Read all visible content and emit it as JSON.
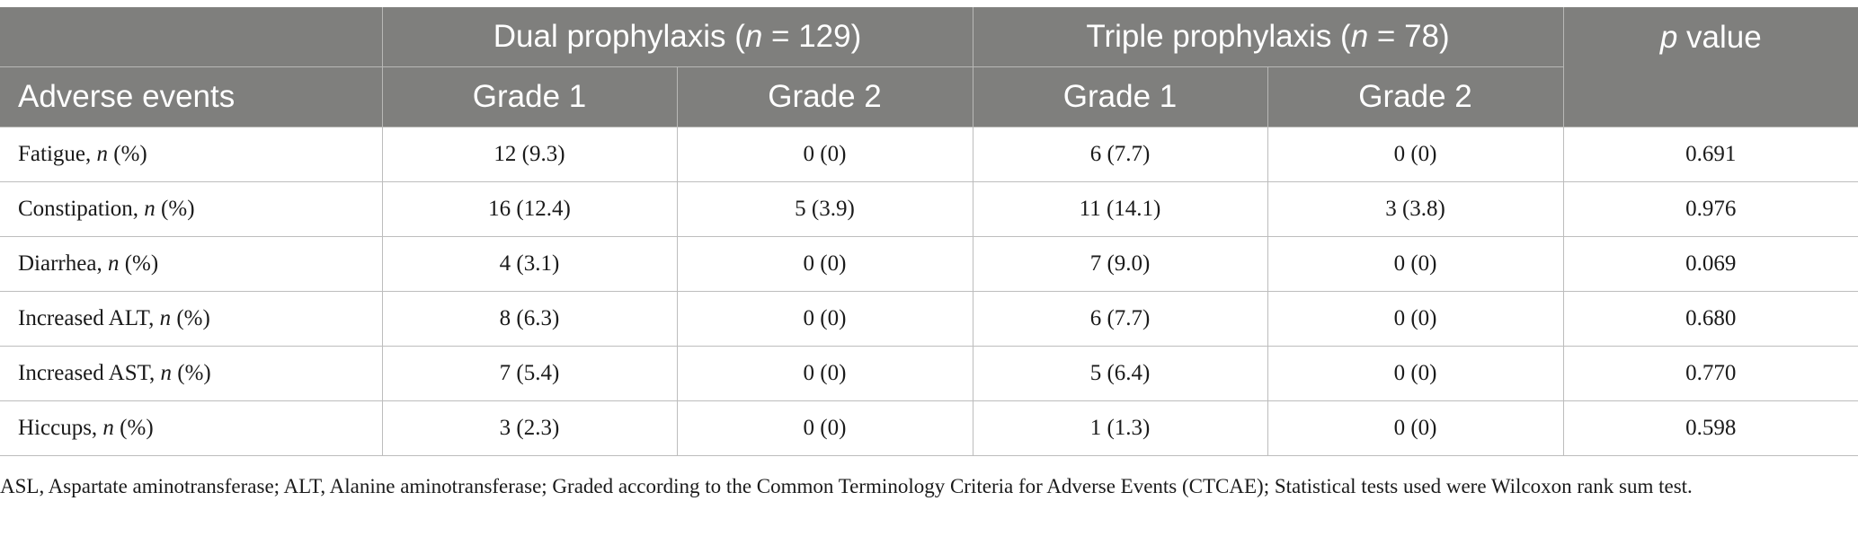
{
  "header": {
    "group1": {
      "pre": "Dual prophylaxis (",
      "n": "n",
      "post": " = 129)"
    },
    "group2": {
      "pre": "Triple prophylaxis (",
      "n": "n",
      "post": " = 78)"
    },
    "pvalue": {
      "p": "p",
      "post": " value"
    },
    "row_label": "Adverse events",
    "grade1": "Grade 1",
    "grade2": "Grade 2"
  },
  "rows": [
    {
      "name": "Fatigue, ",
      "n": "n",
      "unit": " (%)",
      "dual_g1": "12 (9.3)",
      "dual_g2": "0 (0)",
      "triple_g1": "6 (7.7)",
      "triple_g2": "0 (0)",
      "p": "0.691"
    },
    {
      "name": "Constipation, ",
      "n": "n",
      "unit": " (%)",
      "dual_g1": "16 (12.4)",
      "dual_g2": "5 (3.9)",
      "triple_g1": "11 (14.1)",
      "triple_g2": "3 (3.8)",
      "p": "0.976"
    },
    {
      "name": "Diarrhea, ",
      "n": "n",
      "unit": " (%)",
      "dual_g1": "4 (3.1)",
      "dual_g2": "0 (0)",
      "triple_g1": "7 (9.0)",
      "triple_g2": "0 (0)",
      "p": "0.069"
    },
    {
      "name": "Increased ALT, ",
      "n": "n",
      "unit": " (%)",
      "dual_g1": "8 (6.3)",
      "dual_g2": "0 (0)",
      "triple_g1": "6 (7.7)",
      "triple_g2": "0 (0)",
      "p": "0.680"
    },
    {
      "name": "Increased AST, ",
      "n": "n",
      "unit": " (%)",
      "dual_g1": "7 (5.4)",
      "dual_g2": "0 (0)",
      "triple_g1": "5 (6.4)",
      "triple_g2": "0 (0)",
      "p": "0.770"
    },
    {
      "name": "Hiccups, ",
      "n": "n",
      "unit": " (%)",
      "dual_g1": "3 (2.3)",
      "dual_g2": "0 (0)",
      "triple_g1": "1 (1.3)",
      "triple_g2": "0 (0)",
      "p": "0.598"
    }
  ],
  "footnote": "ASL, Aspartate aminotransferase; ALT, Alanine aminotransferase; Graded according to the Common Terminology Criteria for Adverse Events (CTCAE); Statistical tests used were Wilcoxon rank sum test."
}
